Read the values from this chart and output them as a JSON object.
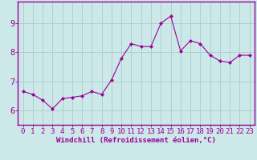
{
  "x": [
    0,
    1,
    2,
    3,
    4,
    5,
    6,
    7,
    8,
    9,
    10,
    11,
    12,
    13,
    14,
    15,
    16,
    17,
    18,
    19,
    20,
    21,
    22,
    23
  ],
  "y": [
    6.65,
    6.55,
    6.35,
    6.05,
    6.4,
    6.45,
    6.5,
    6.65,
    6.55,
    7.05,
    7.8,
    8.3,
    8.2,
    8.2,
    9.0,
    9.25,
    8.05,
    8.4,
    8.3,
    7.9,
    7.7,
    7.65,
    7.9,
    7.9
  ],
  "line_color": "#990099",
  "marker": "D",
  "marker_size": 2.0,
  "bg_color": "#cce8e8",
  "grid_color": "#aacccc",
  "xlabel": "Windchill (Refroidissement éolien,°C)",
  "ylim": [
    5.5,
    9.75
  ],
  "yticks": [
    6,
    7,
    8,
    9
  ],
  "xlim": [
    -0.5,
    23.5
  ],
  "xlabel_color": "#990099",
  "tick_color": "#990099",
  "axis_color": "#990099",
  "xlabel_fontsize": 6.5,
  "tick_fontsize": 6.5
}
